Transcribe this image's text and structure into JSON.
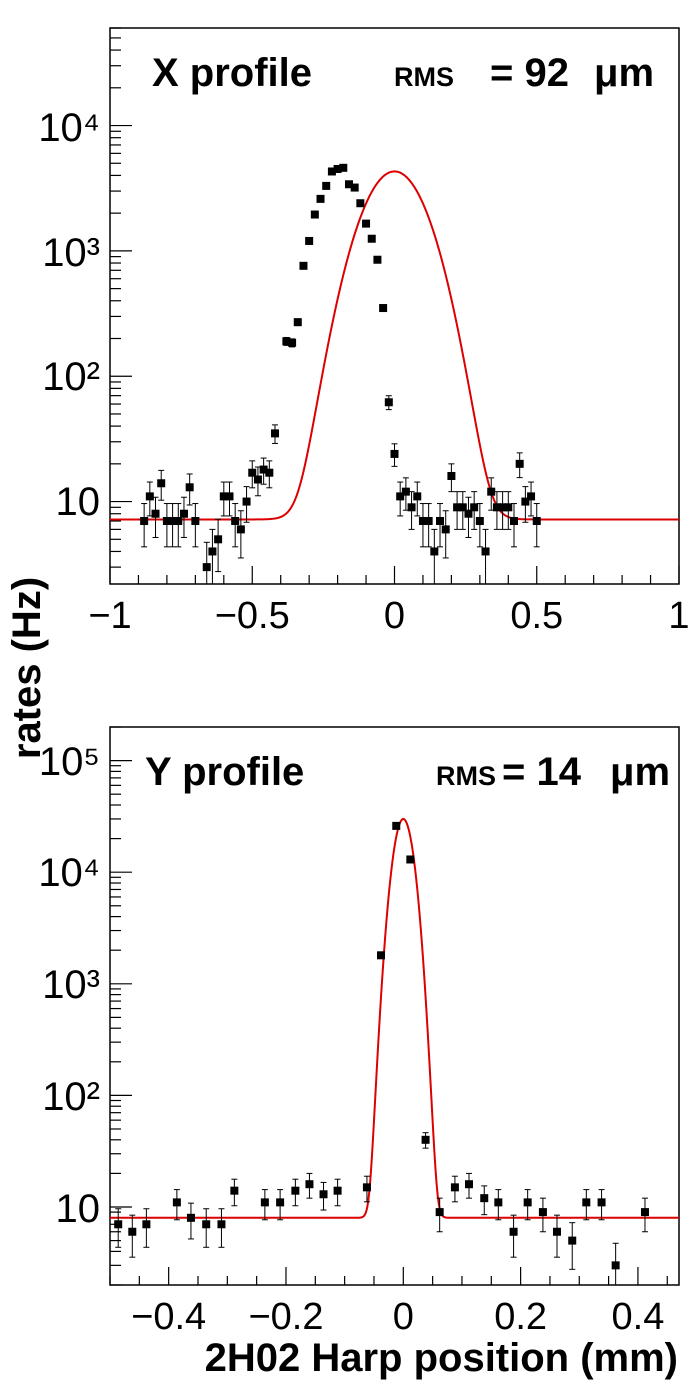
{
  "figure": {
    "ylabel": "rates (Hz)",
    "xlabel": "2H02 Harp position (mm)"
  },
  "chart_data": [
    {
      "type": "scatter",
      "title": "X profile",
      "rms_label": "RMS",
      "rms_value": "= 92",
      "rms_unit": "μm",
      "xlabel": "2H02 Harp position (mm)",
      "ylabel": "rates (Hz)",
      "xlim": [
        -1,
        1
      ],
      "ylim": [
        2.2,
        60000
      ],
      "yscale": "log",
      "x_ticks": [
        -1,
        -0.5,
        0,
        0.5,
        1
      ],
      "x_tick_labels": [
        "−1",
        "−0.5",
        "0",
        "0.5",
        "1"
      ],
      "y_tick_labels": [
        "10",
        "10²",
        "10³",
        "10⁴"
      ],
      "marker_color": "#000000",
      "fit_color": "#dd0000",
      "fit": {
        "amplitude": 4300,
        "mean": 0.0,
        "sigma": 0.092,
        "baseline": 7.2
      },
      "points": [
        [
          -0.88,
          7
        ],
        [
          -0.86,
          11
        ],
        [
          -0.84,
          8
        ],
        [
          -0.82,
          14
        ],
        [
          -0.8,
          7
        ],
        [
          -0.78,
          7
        ],
        [
          -0.76,
          7
        ],
        [
          -0.74,
          8
        ],
        [
          -0.72,
          13
        ],
        [
          -0.7,
          7
        ],
        [
          -0.66,
          3
        ],
        [
          -0.64,
          4
        ],
        [
          -0.62,
          5
        ],
        [
          -0.6,
          11
        ],
        [
          -0.58,
          11
        ],
        [
          -0.56,
          7
        ],
        [
          -0.54,
          6
        ],
        [
          -0.52,
          10
        ],
        [
          -0.5,
          17
        ],
        [
          -0.48,
          15
        ],
        [
          -0.46,
          18
        ],
        [
          -0.44,
          17
        ],
        [
          -0.42,
          35
        ],
        [
          -0.38,
          190
        ],
        [
          -0.36,
          185
        ],
        [
          -0.34,
          270
        ],
        [
          -0.32,
          760
        ],
        [
          -0.3,
          1200
        ],
        [
          -0.28,
          1950
        ],
        [
          -0.26,
          2600
        ],
        [
          -0.24,
          3300
        ],
        [
          -0.22,
          4300
        ],
        [
          -0.2,
          4500
        ],
        [
          -0.18,
          4600
        ],
        [
          -0.16,
          3400
        ],
        [
          -0.14,
          3200
        ],
        [
          -0.12,
          2400
        ],
        [
          -0.1,
          1650
        ],
        [
          -0.08,
          1250
        ],
        [
          -0.06,
          850
        ],
        [
          -0.04,
          350
        ],
        [
          -0.02,
          62
        ],
        [
          0.0,
          24
        ],
        [
          0.02,
          11
        ],
        [
          0.04,
          12
        ],
        [
          0.06,
          9
        ],
        [
          0.08,
          11
        ],
        [
          0.1,
          7
        ],
        [
          0.12,
          7
        ],
        [
          0.14,
          4
        ],
        [
          0.16,
          7
        ],
        [
          0.18,
          6
        ],
        [
          0.2,
          16
        ],
        [
          0.22,
          9
        ],
        [
          0.24,
          9
        ],
        [
          0.26,
          8
        ],
        [
          0.28,
          9
        ],
        [
          0.3,
          7
        ],
        [
          0.32,
          4
        ],
        [
          0.34,
          12
        ],
        [
          0.36,
          9
        ],
        [
          0.38,
          9
        ],
        [
          0.4,
          9
        ],
        [
          0.42,
          7
        ],
        [
          0.44,
          20
        ],
        [
          0.46,
          10
        ],
        [
          0.48,
          11
        ],
        [
          0.5,
          7
        ]
      ]
    },
    {
      "type": "scatter",
      "title": "Y profile",
      "rms_label": "RMS",
      "rms_value": "= 14",
      "rms_unit": "μm",
      "xlabel": "2H02 Harp position (mm)",
      "ylabel": "rates (Hz)",
      "xlim": [
        -0.5,
        0.47
      ],
      "ylim": [
        2.0,
        200000
      ],
      "yscale": "log",
      "x_ticks": [
        -0.4,
        -0.2,
        0,
        0.2,
        0.4
      ],
      "x_tick_labels": [
        "−0.4",
        "−0.2",
        "0",
        "0.2",
        "0.4"
      ],
      "y_tick_labels": [
        "10",
        "10²",
        "10³",
        "10⁴",
        "10⁵"
      ],
      "marker_color": "#000000",
      "fit_color": "#dd0000",
      "fit": {
        "amplitude": 30000,
        "mean": 0.0,
        "sigma": 0.014,
        "baseline": 8
      },
      "points": [
        [
          -0.486,
          7
        ],
        [
          -0.462,
          6
        ],
        [
          -0.438,
          7
        ],
        [
          -0.386,
          11
        ],
        [
          -0.362,
          8
        ],
        [
          -0.336,
          7
        ],
        [
          -0.31,
          7
        ],
        [
          -0.288,
          14
        ],
        [
          -0.236,
          11
        ],
        [
          -0.21,
          11
        ],
        [
          -0.184,
          14
        ],
        [
          -0.16,
          16
        ],
        [
          -0.136,
          13
        ],
        [
          -0.112,
          14
        ],
        [
          -0.062,
          15
        ],
        [
          -0.038,
          1800
        ],
        [
          -0.012,
          26000
        ],
        [
          0.012,
          13000
        ],
        [
          0.038,
          40
        ],
        [
          0.062,
          9
        ],
        [
          0.088,
          15
        ],
        [
          0.112,
          16
        ],
        [
          0.138,
          12
        ],
        [
          0.162,
          11
        ],
        [
          0.188,
          6
        ],
        [
          0.212,
          11
        ],
        [
          0.238,
          9
        ],
        [
          0.262,
          6
        ],
        [
          0.288,
          5
        ],
        [
          0.312,
          11
        ],
        [
          0.338,
          11
        ],
        [
          0.362,
          3
        ],
        [
          0.412,
          9
        ]
      ]
    }
  ]
}
